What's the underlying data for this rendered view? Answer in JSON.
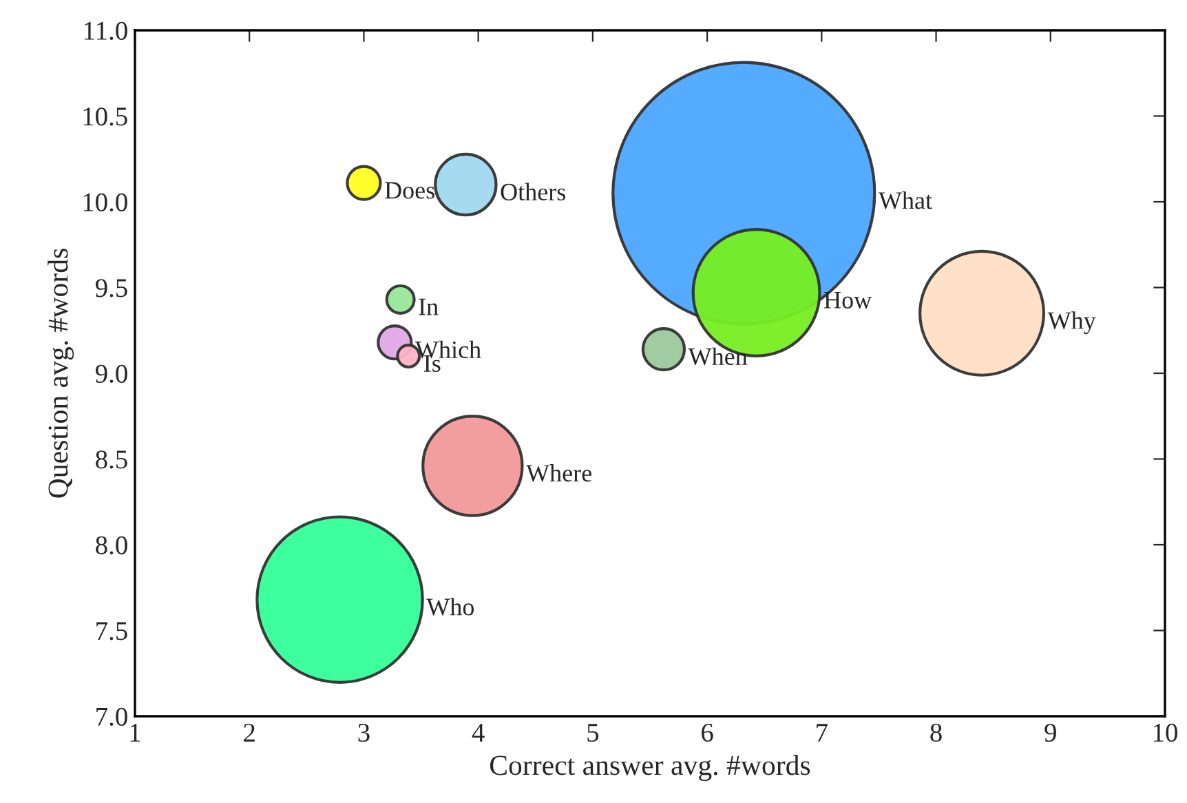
{
  "chart_data": {
    "type": "bubble",
    "xlabel": "Correct answer avg. #words",
    "ylabel": "Question avg. #words",
    "xlim": [
      1,
      10
    ],
    "xticks": [
      1,
      2,
      3,
      4,
      5,
      6,
      7,
      8,
      9,
      10
    ],
    "ylim": [
      7.0,
      11.0
    ],
    "yticks": [
      {
        "value": 7.0,
        "label": "7.0"
      },
      {
        "value": 7.5,
        "label": "7.5"
      },
      {
        "value": 8.0,
        "label": "8.0"
      },
      {
        "value": 8.5,
        "label": "8.5"
      },
      {
        "value": 9.0,
        "label": "9.0"
      },
      {
        "value": 9.5,
        "label": "9.5"
      },
      {
        "value": 10.0,
        "label": "10.0"
      },
      {
        "value": 10.5,
        "label": "10.5"
      },
      {
        "value": 11.0,
        "label": "11.0"
      }
    ],
    "grid": false,
    "legend": false,
    "series": [
      {
        "name": "What",
        "color": "#4ca6ff",
        "x": [
          6.32
        ],
        "values": [
          10.05
        ],
        "sizes": [
          1
        ]
      },
      {
        "name": "Who",
        "color": "#33ff99",
        "x": [
          2.79
        ],
        "values": [
          7.68
        ],
        "sizes": [
          0.4
        ]
      },
      {
        "name": "Why",
        "color": "#ffdfc4",
        "x": [
          8.4
        ],
        "values": [
          9.35
        ],
        "sizes": [
          0.224
        ]
      },
      {
        "name": "How",
        "color": "#77ee22",
        "x": [
          6.43
        ],
        "values": [
          9.47
        ],
        "sizes": [
          0.234
        ]
      },
      {
        "name": "Where",
        "color": "#f19999",
        "x": [
          3.95
        ],
        "values": [
          8.46
        ],
        "sizes": [
          0.144
        ]
      },
      {
        "name": "Others",
        "color": "#a0d8ef",
        "x": [
          3.89
        ],
        "values": [
          10.1
        ],
        "sizes": [
          0.054
        ]
      },
      {
        "name": "When",
        "color": "#9cc89c",
        "x": [
          5.62
        ],
        "values": [
          9.14
        ],
        "sizes": [
          0.025
        ]
      },
      {
        "name": "Does",
        "color": "#ffff22",
        "x": [
          3.0
        ],
        "values": [
          10.11
        ],
        "sizes": [
          0.016
        ]
      },
      {
        "name": "Which",
        "color": "#e0a8e8",
        "x": [
          3.27
        ],
        "values": [
          9.18
        ],
        "sizes": [
          0.016
        ]
      },
      {
        "name": "In",
        "color": "#99e699",
        "x": [
          3.32
        ],
        "values": [
          9.43
        ],
        "sizes": [
          0.011
        ]
      },
      {
        "name": "Is",
        "color": "#ffb3c6",
        "x": [
          3.39
        ],
        "values": [
          9.1
        ],
        "sizes": [
          0.007
        ]
      }
    ]
  }
}
